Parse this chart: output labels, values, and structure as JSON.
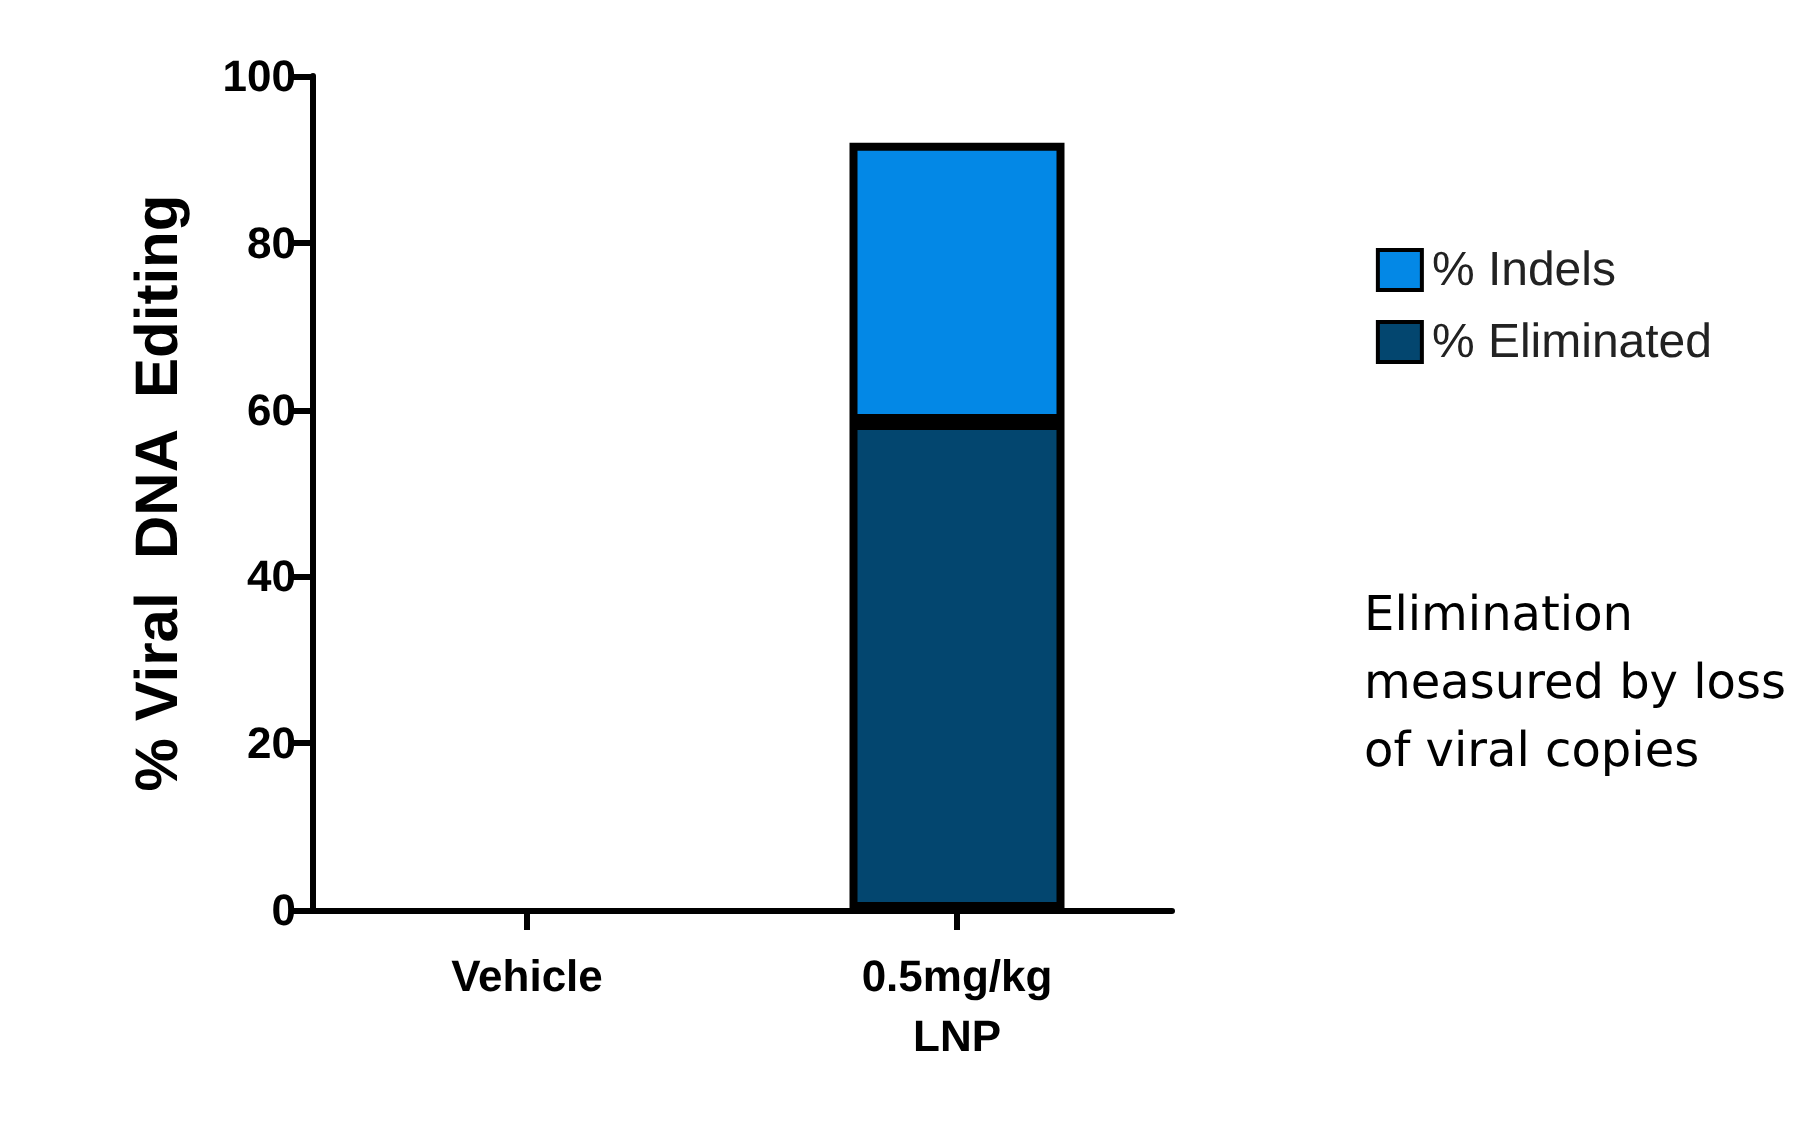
{
  "chart_data": {
    "type": "bar",
    "stacked": true,
    "ylabel": "% Viral  DNA  Editing",
    "categories": [
      "Vehicle",
      "0.5mg/kg\nLNP"
    ],
    "series": [
      {
        "name": "% Eliminated",
        "color": "#03466f",
        "values": [
          0,
          58.5
        ]
      },
      {
        "name": "% Indels",
        "color": "#0388e6",
        "values": [
          0,
          33.5
        ]
      }
    ],
    "ylim": [
      0,
      100
    ],
    "yticks": [
      0,
      20,
      40,
      60,
      80,
      100
    ],
    "grid": false,
    "legend": "right",
    "annotations": [
      "Elimination\nmeasured by loss\nof viral copies"
    ]
  }
}
